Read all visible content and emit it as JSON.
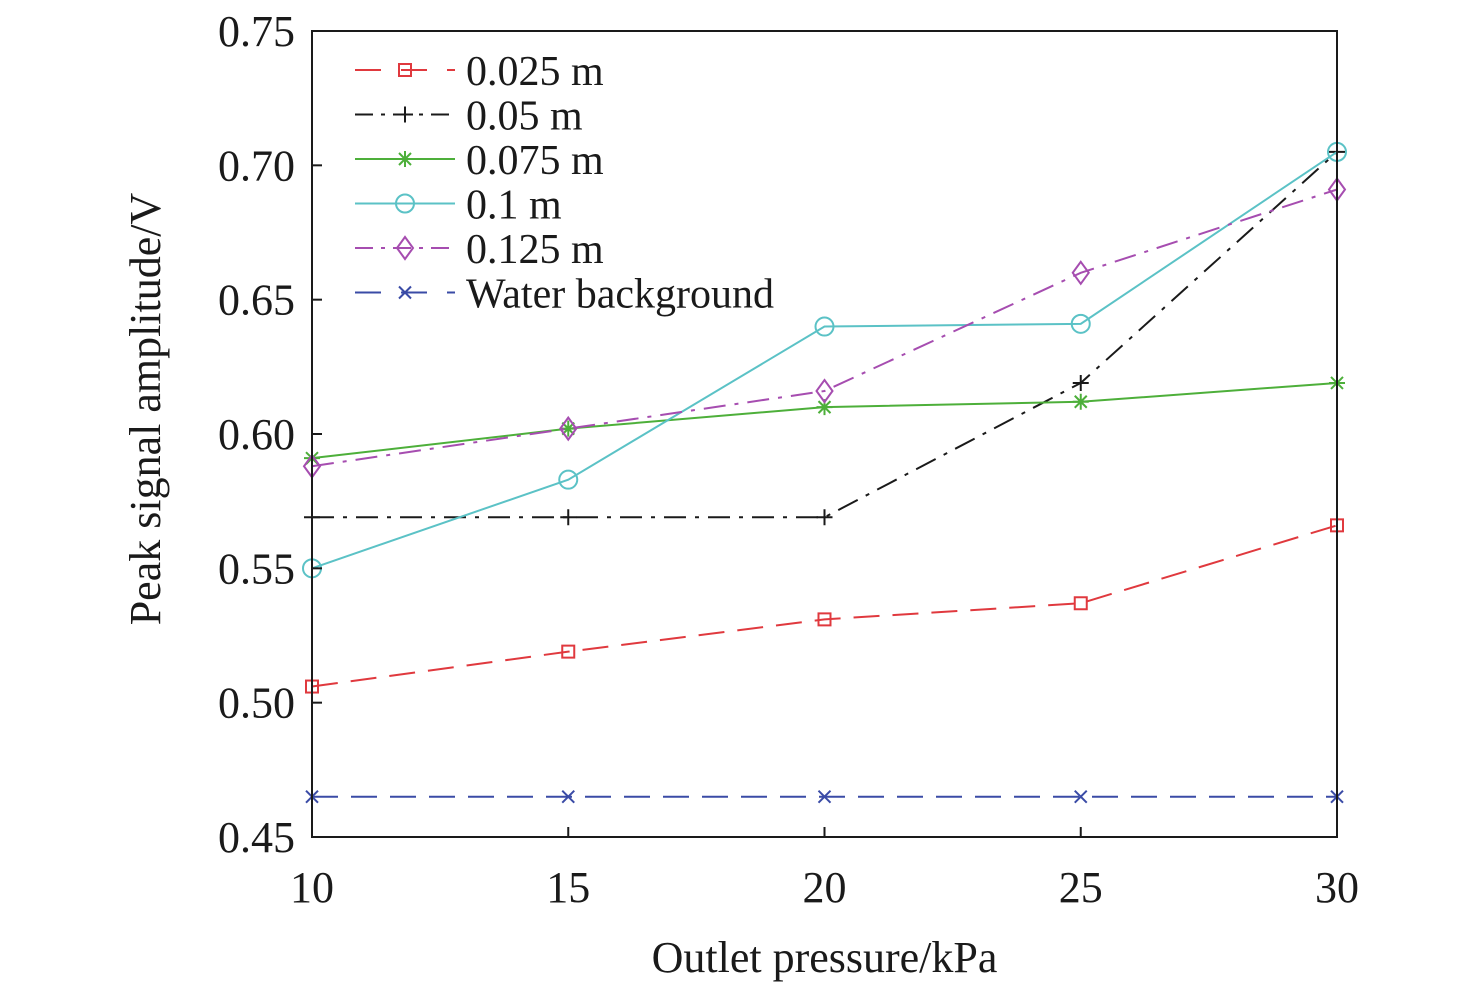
{
  "chart_data": {
    "type": "line",
    "title": "",
    "xlabel": "Outlet pressure/kPa",
    "ylabel": "Peak signal amplitude/V",
    "xlim": [
      10,
      30
    ],
    "ylim": [
      0.45,
      0.75
    ],
    "x": [
      10,
      15,
      20,
      25,
      30
    ],
    "xticks": [
      "10",
      "15",
      "20",
      "25",
      "30"
    ],
    "yticks": [
      "0.45",
      "0.50",
      "0.55",
      "0.60",
      "0.65",
      "0.70",
      "0.75"
    ],
    "legend_position": "top-left",
    "grid": false,
    "series": [
      {
        "name": "0.025 m",
        "values": [
          0.506,
          0.519,
          0.531,
          0.537,
          0.566
        ],
        "color": "#e0393e",
        "marker": "square",
        "line": "dashed"
      },
      {
        "name": "0.05 m",
        "values": [
          0.569,
          0.569,
          0.569,
          0.619,
          0.705
        ],
        "color": "#1a1a1a",
        "marker": "plus",
        "line": "dashdot"
      },
      {
        "name": "0.075 m",
        "values": [
          0.591,
          0.602,
          0.61,
          0.612,
          0.619
        ],
        "color": "#4daf3a",
        "marker": "asterisk",
        "line": "solid"
      },
      {
        "name": "0.1 m",
        "values": [
          0.55,
          0.583,
          0.64,
          0.641,
          0.705
        ],
        "color": "#5bc2c6",
        "marker": "circle",
        "line": "solid"
      },
      {
        "name": "0.125 m",
        "values": [
          0.588,
          0.602,
          0.616,
          0.66,
          0.691
        ],
        "color": "#a64db0",
        "marker": "diamond",
        "line": "dashdot"
      },
      {
        "name": "Water background",
        "values": [
          0.465,
          0.465,
          0.465,
          0.465,
          0.465
        ],
        "color": "#3a4ba6",
        "marker": "cross",
        "line": "dashed"
      }
    ]
  }
}
